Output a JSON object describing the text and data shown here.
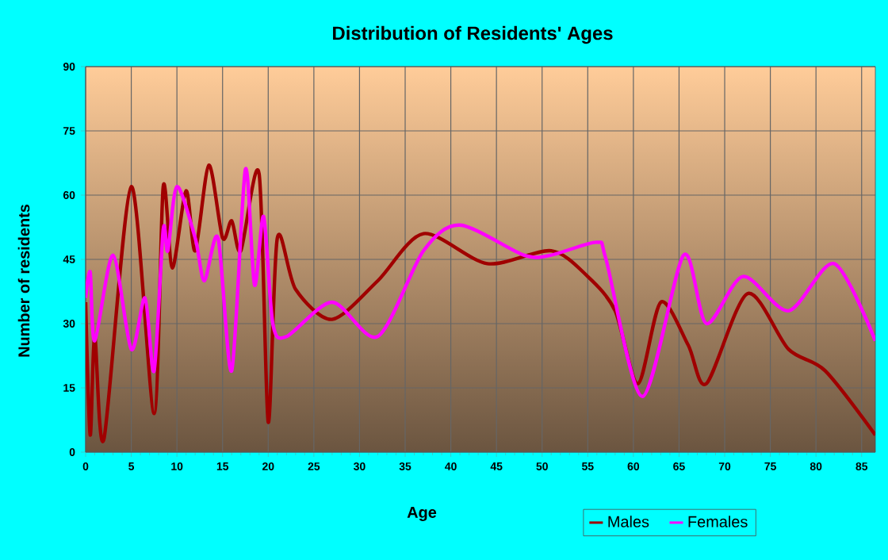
{
  "chart_data": {
    "type": "line",
    "title": "Distribution of Residents' Ages",
    "xlabel": "Age",
    "ylabel": "Number of residents",
    "xlim": [
      0,
      86.5
    ],
    "xticks": [
      0,
      5,
      10,
      15,
      20,
      25,
      30,
      35,
      40,
      45,
      50,
      55,
      60,
      65,
      70,
      75,
      80,
      85
    ],
    "ylim": [
      0,
      90
    ],
    "yticks": [
      0,
      15,
      30,
      45,
      60,
      75,
      90
    ],
    "grid": true,
    "legend": "bottom right",
    "marker": "none",
    "line_style": "solid",
    "series": [
      {
        "name": "Males",
        "color": "#a00000",
        "x": [
          0,
          0.5,
          1,
          2,
          5,
          7.5,
          8.5,
          9.5,
          11,
          12,
          13.5,
          15,
          16,
          17,
          19,
          20,
          21,
          23,
          27,
          32,
          37,
          44,
          51,
          55,
          58,
          60.5,
          63,
          66,
          68,
          72.5,
          77,
          81,
          86.5
        ],
        "values": [
          35,
          4,
          27,
          3,
          62,
          9,
          62,
          43,
          61,
          47,
          67,
          50,
          54,
          47,
          65,
          7,
          50,
          38,
          31,
          40,
          51,
          44,
          47,
          41,
          33,
          16,
          35,
          25,
          16,
          37,
          24,
          19,
          4
        ]
      },
      {
        "name": "Females",
        "color": "#ff00ff",
        "x": [
          0,
          0.5,
          1,
          3,
          5,
          6.5,
          7.5,
          8.5,
          9,
          10,
          12,
          13,
          14.5,
          16,
          17.5,
          18.5,
          19.5,
          20.5,
          22,
          27,
          32,
          37,
          41,
          48,
          51,
          56,
          57,
          61,
          65.5,
          68,
          72,
          77,
          82,
          86.5
        ],
        "values": [
          36,
          42,
          26,
          46,
          24,
          36,
          19,
          52,
          47,
          62,
          50,
          40,
          50,
          19,
          66,
          39,
          55,
          30,
          27,
          35,
          27,
          47,
          53,
          46,
          46,
          49,
          45,
          13,
          46,
          30,
          41,
          33,
          44,
          26
        ]
      }
    ]
  }
}
